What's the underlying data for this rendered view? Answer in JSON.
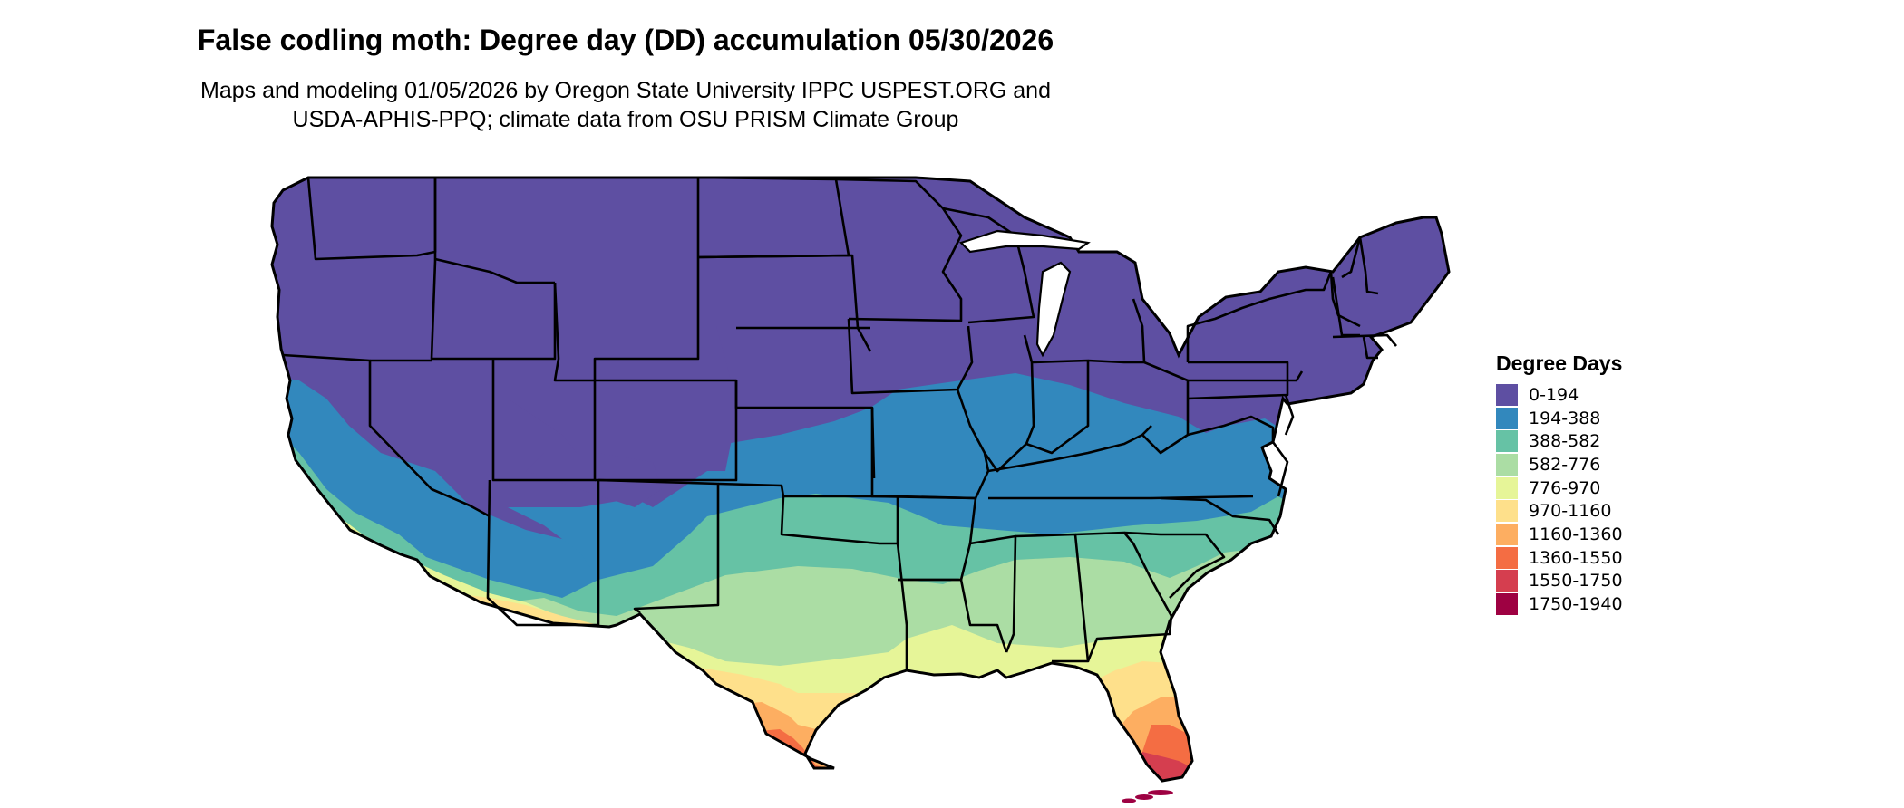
{
  "header": {
    "title": "False codling moth: Degree day (DD) accumulation 05/30/2026",
    "subtitle_line1": "Maps and modeling 01/05/2026 by Oregon State University IPPC USPEST.ORG and",
    "subtitle_line2": "USDA-APHIS-PPQ; climate data from OSU PRISM Climate Group"
  },
  "legend": {
    "title": "Degree Days",
    "items": [
      {
        "label": "0-194",
        "color": "#5e4fa2"
      },
      {
        "label": "194-388",
        "color": "#3288bd"
      },
      {
        "label": "388-582",
        "color": "#66c2a5"
      },
      {
        "label": "582-776",
        "color": "#abdda4"
      },
      {
        "label": "776-970",
        "color": "#e6f598"
      },
      {
        "label": "970-1160",
        "color": "#fee08b"
      },
      {
        "label": "1160-1360",
        "color": "#fdae61"
      },
      {
        "label": "1360-1550",
        "color": "#f46d43"
      },
      {
        "label": "1550-1750",
        "color": "#d53e4f"
      },
      {
        "label": "1750-1940",
        "color": "#9e0142"
      }
    ]
  }
}
